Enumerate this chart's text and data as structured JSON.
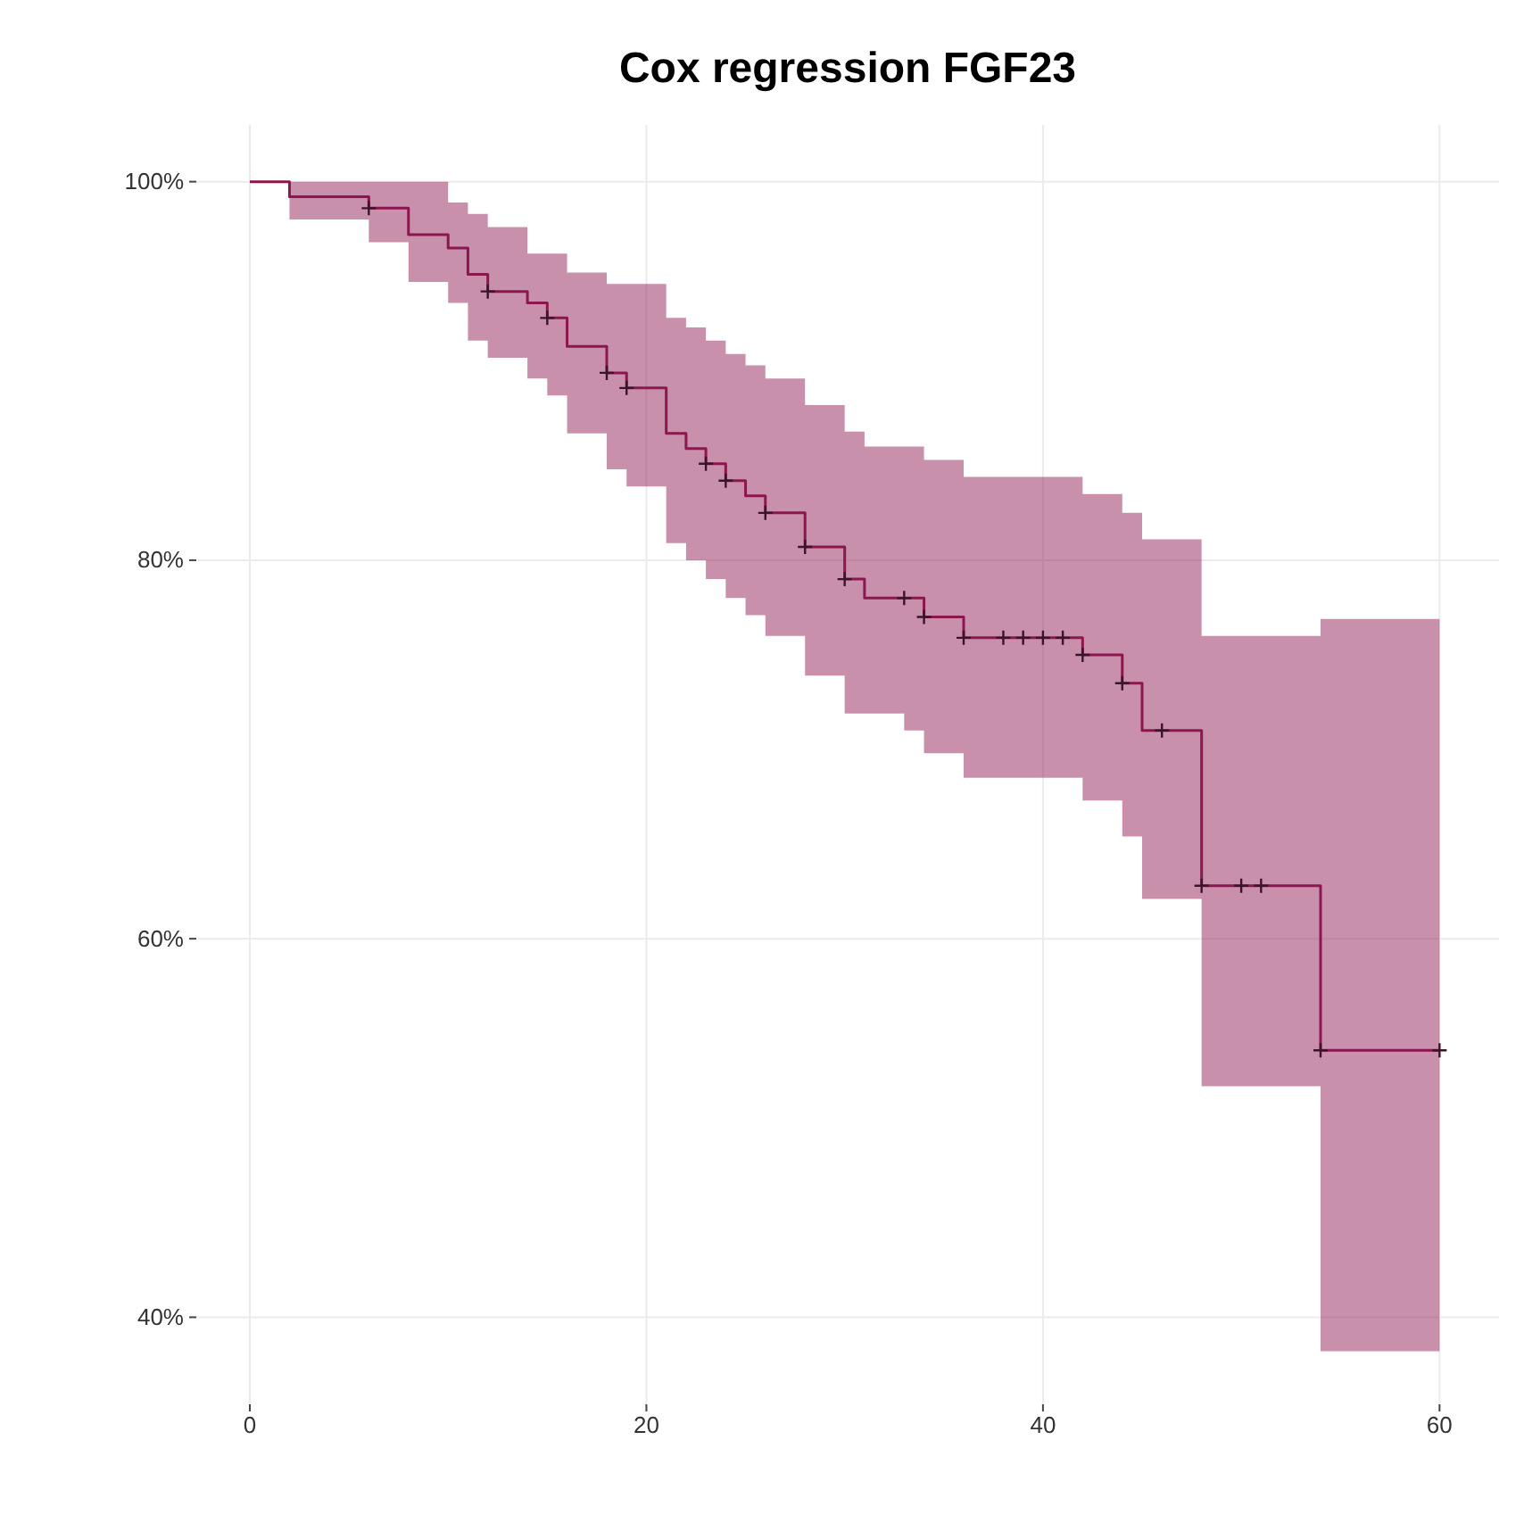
{
  "chart_data": {
    "type": "step",
    "title": "Cox regression FGF23",
    "x": [
      0,
      2,
      6,
      8,
      10,
      11,
      12,
      14,
      15,
      16,
      18,
      19,
      21,
      22,
      23,
      24,
      25,
      26,
      28,
      30,
      31,
      33,
      34,
      36,
      38,
      39,
      40,
      41,
      42,
      44,
      45,
      46,
      48,
      50,
      51,
      54,
      60
    ],
    "series": [
      {
        "color": "#8e1650",
        "values": [
          100,
          99.2,
          98.6,
          97.2,
          96.5,
          95.1,
          94.2,
          93.6,
          92.8,
          91.3,
          89.9,
          89.1,
          86.7,
          85.9,
          85.1,
          84.2,
          83.4,
          82.5,
          80.7,
          79.0,
          78.0,
          78.0,
          77.0,
          75.9,
          75.9,
          75.9,
          75.9,
          75.9,
          75.0,
          73.5,
          71.0,
          71.0,
          62.8,
          62.8,
          62.8,
          54.1,
          54.1
        ],
        "upper": [
          100,
          100,
          100,
          100,
          98.9,
          98.3,
          97.6,
          96.2,
          96.2,
          95.2,
          94.6,
          94.6,
          92.8,
          92.3,
          91.6,
          90.9,
          90.3,
          89.6,
          88.2,
          86.8,
          86.0,
          86.0,
          85.3,
          84.4,
          84.4,
          84.4,
          84.4,
          84.4,
          83.5,
          82.5,
          81.1,
          81.1,
          76.0,
          76.0,
          76.0,
          76.9,
          76.9
        ],
        "lower": [
          100,
          98.0,
          96.8,
          94.7,
          93.6,
          91.6,
          90.7,
          89.6,
          88.7,
          86.7,
          84.8,
          83.9,
          80.9,
          80.0,
          79.0,
          78.0,
          77.1,
          76.0,
          73.9,
          71.9,
          71.9,
          71.0,
          69.8,
          68.5,
          68.5,
          68.5,
          68.5,
          68.5,
          67.3,
          65.4,
          62.1,
          62.1,
          52.2,
          52.2,
          52.2,
          38.2,
          38.2
        ]
      },
      {
        "type": "scatter",
        "color": "#3a1428",
        "marker": "cross",
        "x": [
          6,
          12,
          15,
          18,
          19,
          23,
          24,
          26,
          28,
          30,
          33,
          34,
          36,
          38,
          39,
          40,
          41,
          42,
          44,
          46,
          48,
          50,
          51,
          54,
          60
        ],
        "values": [
          98.6,
          94.2,
          92.8,
          89.9,
          89.1,
          85.1,
          84.2,
          82.5,
          80.7,
          79.0,
          78.0,
          77.0,
          75.9,
          75.9,
          75.9,
          75.9,
          75.9,
          75.0,
          73.5,
          71.0,
          62.8,
          62.8,
          62.8,
          54.1,
          54.1
        ]
      }
    ],
    "xlim": [
      -2.7,
      63
    ],
    "xticks": [
      0,
      20,
      40,
      60
    ],
    "ylim": [
      35.4,
      103
    ],
    "yticks": [
      {
        "value": 40,
        "label": "40%"
      },
      {
        "value": 60,
        "label": "60%"
      },
      {
        "value": 80,
        "label": "80%"
      },
      {
        "value": 100,
        "label": "100%"
      }
    ],
    "grid": true
  }
}
